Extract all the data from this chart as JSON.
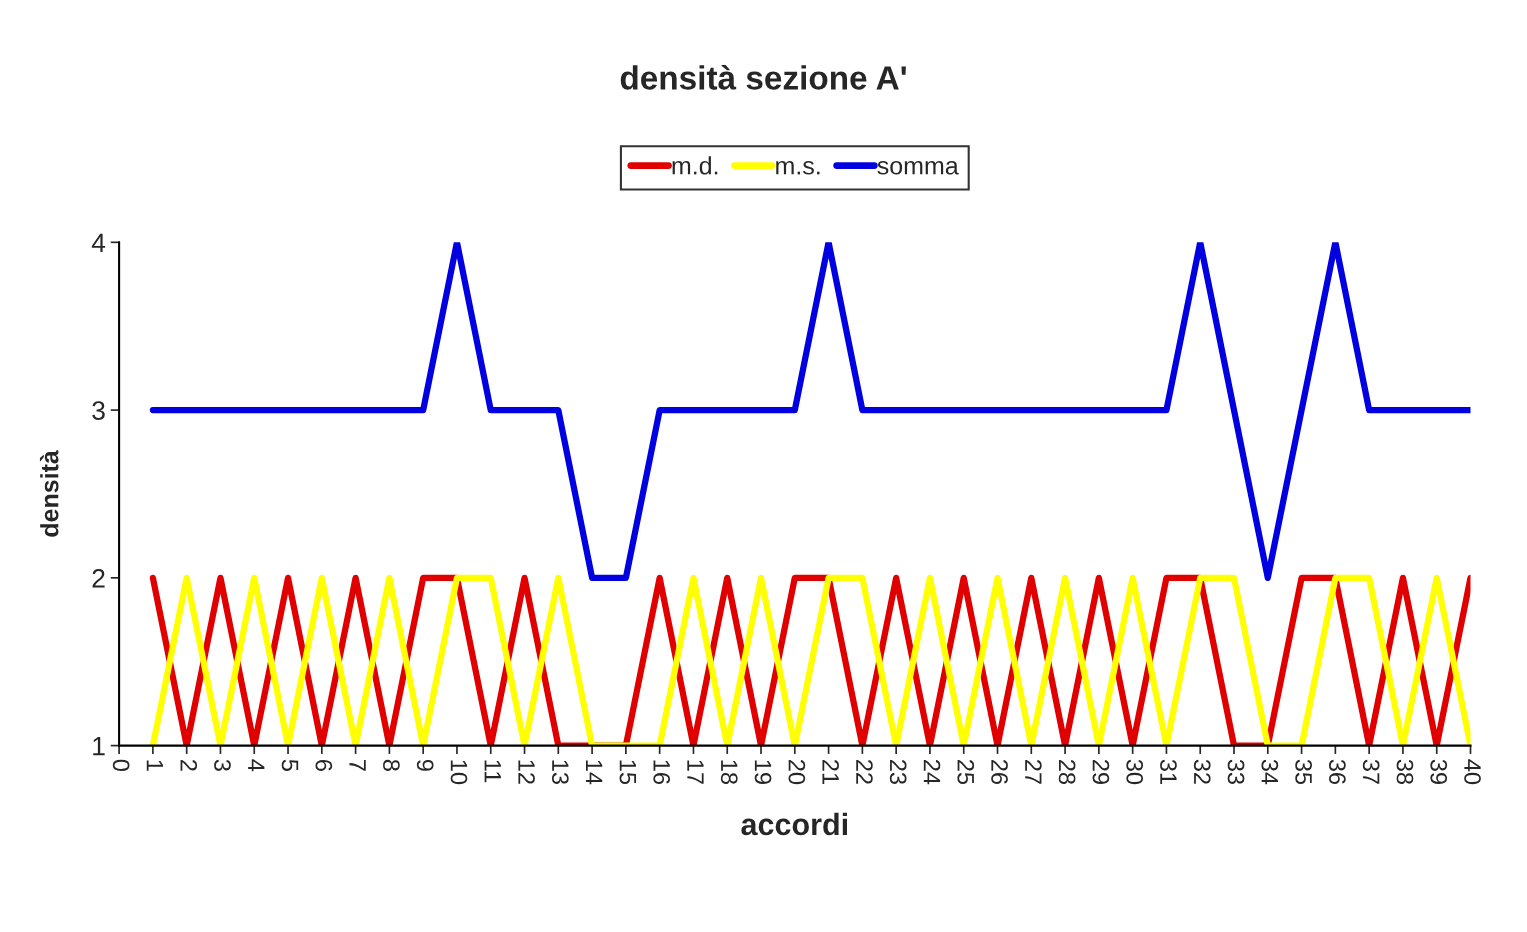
{
  "chart_data": {
    "type": "line",
    "title": "densità sezione A'",
    "xlabel": "accordi",
    "ylabel": "densità",
    "x": [
      1,
      2,
      3,
      4,
      5,
      6,
      7,
      8,
      9,
      10,
      11,
      12,
      13,
      14,
      15,
      16,
      17,
      18,
      19,
      20,
      21,
      22,
      23,
      24,
      25,
      26,
      27,
      28,
      29,
      30,
      31,
      32,
      33,
      34,
      35,
      36,
      37,
      38,
      39,
      40
    ],
    "series": [
      {
        "name": "m.d.",
        "color": "#e00000",
        "values": [
          2,
          1,
          2,
          1,
          2,
          1,
          2,
          1,
          2,
          2,
          1,
          2,
          1,
          1,
          1,
          2,
          1,
          2,
          1,
          2,
          2,
          1,
          2,
          1,
          2,
          1,
          2,
          1,
          2,
          1,
          2,
          2,
          1,
          1,
          2,
          2,
          1,
          2,
          1,
          2
        ]
      },
      {
        "name": "m.s.",
        "color": "#ffff00",
        "values": [
          1,
          2,
          1,
          2,
          1,
          2,
          1,
          2,
          1,
          2,
          2,
          1,
          2,
          1,
          1,
          1,
          2,
          1,
          2,
          1,
          2,
          2,
          1,
          2,
          1,
          2,
          1,
          2,
          1,
          2,
          1,
          2,
          2,
          1,
          1,
          2,
          2,
          1,
          2,
          1
        ]
      },
      {
        "name": "somma",
        "color": "#0000e0",
        "values": [
          3,
          3,
          3,
          3,
          3,
          3,
          3,
          3,
          3,
          4,
          3,
          3,
          3,
          2,
          2,
          3,
          3,
          3,
          3,
          3,
          4,
          3,
          3,
          3,
          3,
          3,
          3,
          3,
          3,
          3,
          3,
          4,
          3,
          2,
          3,
          4,
          3,
          3,
          3,
          3
        ]
      }
    ],
    "xlim": [
      0,
      40
    ],
    "xticks": [
      0,
      1,
      2,
      3,
      4,
      5,
      6,
      7,
      8,
      9,
      10,
      11,
      12,
      13,
      14,
      15,
      16,
      17,
      18,
      19,
      20,
      21,
      22,
      23,
      24,
      25,
      26,
      27,
      28,
      29,
      30,
      31,
      32,
      33,
      34,
      35,
      36,
      37,
      38,
      39,
      40
    ],
    "ylim": [
      1,
      4
    ],
    "yticks": [
      1,
      2,
      3,
      4
    ],
    "grid": false,
    "legend": "top",
    "marker": "none",
    "line_style": "solid"
  }
}
